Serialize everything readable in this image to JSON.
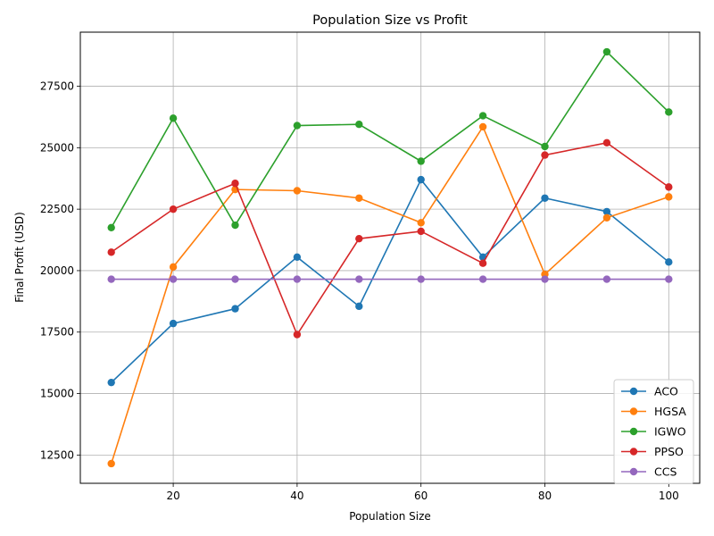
{
  "chart_data": {
    "type": "line",
    "title": "Population Size vs Profit",
    "xlabel": "Population Size",
    "ylabel": "Final Profit (USD)",
    "x": [
      10,
      20,
      30,
      40,
      50,
      60,
      70,
      80,
      90,
      100
    ],
    "xlim": [
      5,
      105
    ],
    "ylim": [
      11350,
      29700
    ],
    "xticks": [
      20,
      40,
      60,
      80,
      100
    ],
    "yticks": [
      12500,
      15000,
      17500,
      20000,
      22500,
      25000,
      27500
    ],
    "grid": true,
    "legend_position": "lower-right",
    "series": [
      {
        "name": "ACO",
        "color": "#1f77b4",
        "values": [
          15450,
          17850,
          18450,
          20550,
          18550,
          23700,
          20550,
          22950,
          22400,
          20350
        ]
      },
      {
        "name": "HGSA",
        "color": "#ff7f0e",
        "values": [
          12150,
          20150,
          23300,
          23250,
          22950,
          21950,
          25850,
          19850,
          22150,
          23000
        ]
      },
      {
        "name": "IGWO",
        "color": "#2ca02c",
        "values": [
          21750,
          26200,
          21850,
          25900,
          25950,
          24450,
          26300,
          25050,
          28900,
          26450
        ]
      },
      {
        "name": "PPSO",
        "color": "#d62728",
        "values": [
          20750,
          22500,
          23550,
          17400,
          21300,
          21600,
          20300,
          24700,
          25200,
          23400
        ]
      },
      {
        "name": "CCS",
        "color": "#9467bd",
        "values": [
          19650,
          19650,
          19650,
          19650,
          19650,
          19650,
          19650,
          19650,
          19650,
          19650
        ]
      }
    ]
  }
}
